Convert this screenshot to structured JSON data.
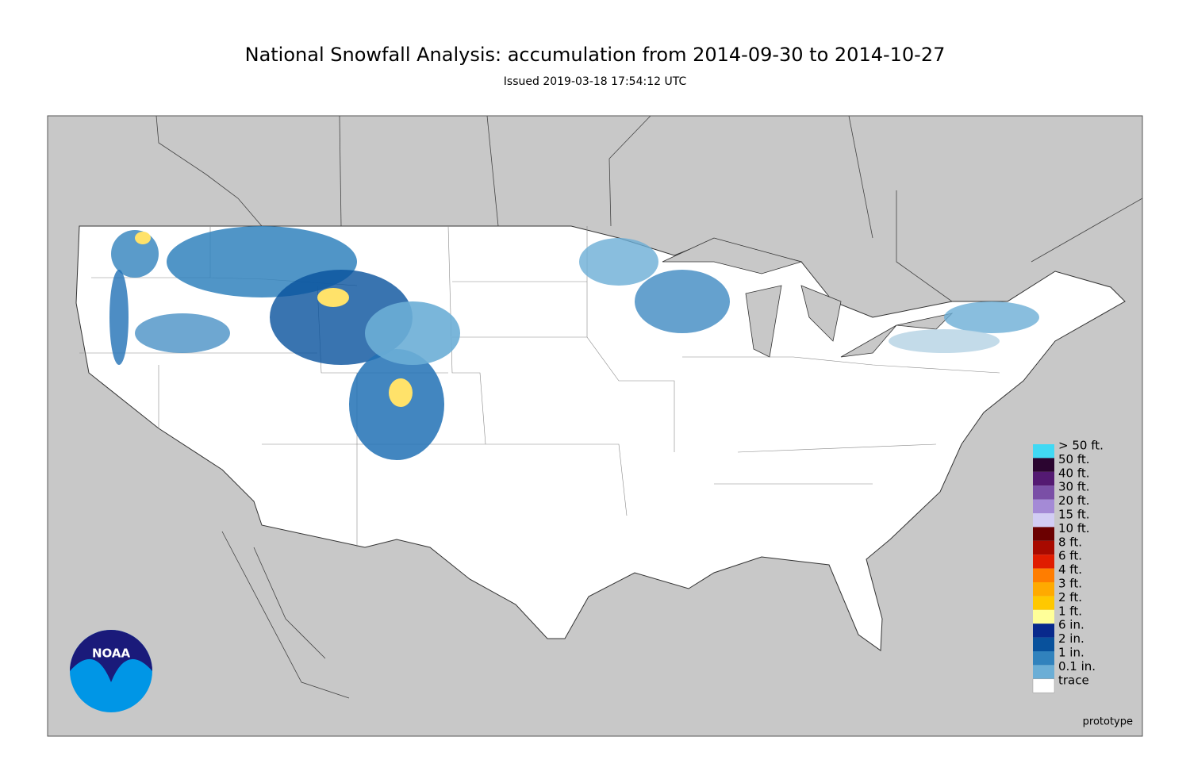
{
  "header": {
    "title": "National Snowfall Analysis: accumulation from 2014-09-30 to 2014-10-27",
    "subtitle": "Issued 2019-03-18 17:54:12 UTC"
  },
  "legend": {
    "items": [
      {
        "label": "> 50 ft.",
        "color": "#41d9f4"
      },
      {
        "label": "50 ft.",
        "color": "#2b0530"
      },
      {
        "label": "40 ft.",
        "color": "#541a72"
      },
      {
        "label": "30 ft.",
        "color": "#7a4fa6"
      },
      {
        "label": "20 ft.",
        "color": "#a48ad6"
      },
      {
        "label": "15 ft.",
        "color": "#d2cdf4"
      },
      {
        "label": "10 ft.",
        "color": "#6b0000"
      },
      {
        "label": "8 ft.",
        "color": "#a80a00"
      },
      {
        "label": "6 ft.",
        "color": "#e01c00"
      },
      {
        "label": "4 ft.",
        "color": "#ff7d00"
      },
      {
        "label": "3 ft.",
        "color": "#ffaa00"
      },
      {
        "label": "2 ft.",
        "color": "#ffc800"
      },
      {
        "label": "1 ft.",
        "color": "#ffff99"
      },
      {
        "label": "6 in.",
        "color": "#08298c"
      },
      {
        "label": "2 in.",
        "color": "#08519c"
      },
      {
        "label": "1 in.",
        "color": "#3182bd"
      },
      {
        "label": "0.1 in.",
        "color": "#6baed6"
      },
      {
        "label": "trace",
        "color": "#ffffff"
      }
    ]
  },
  "watermark": "prototype",
  "logo": "NOAA"
}
